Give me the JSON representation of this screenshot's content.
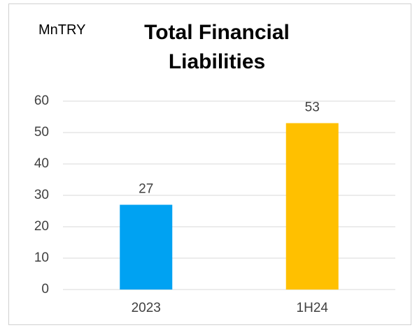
{
  "chart_data": {
    "type": "bar",
    "title": "Total Financial Liabilities",
    "ylabel": "MnTRY",
    "categories": [
      "2023",
      "1H24"
    ],
    "values": [
      27,
      53
    ],
    "colors": [
      "#00a2f2",
      "#ffc000"
    ],
    "ylim": [
      0,
      60
    ],
    "yticks": [
      0,
      10,
      20,
      30,
      40,
      50,
      60
    ],
    "grid": true
  }
}
